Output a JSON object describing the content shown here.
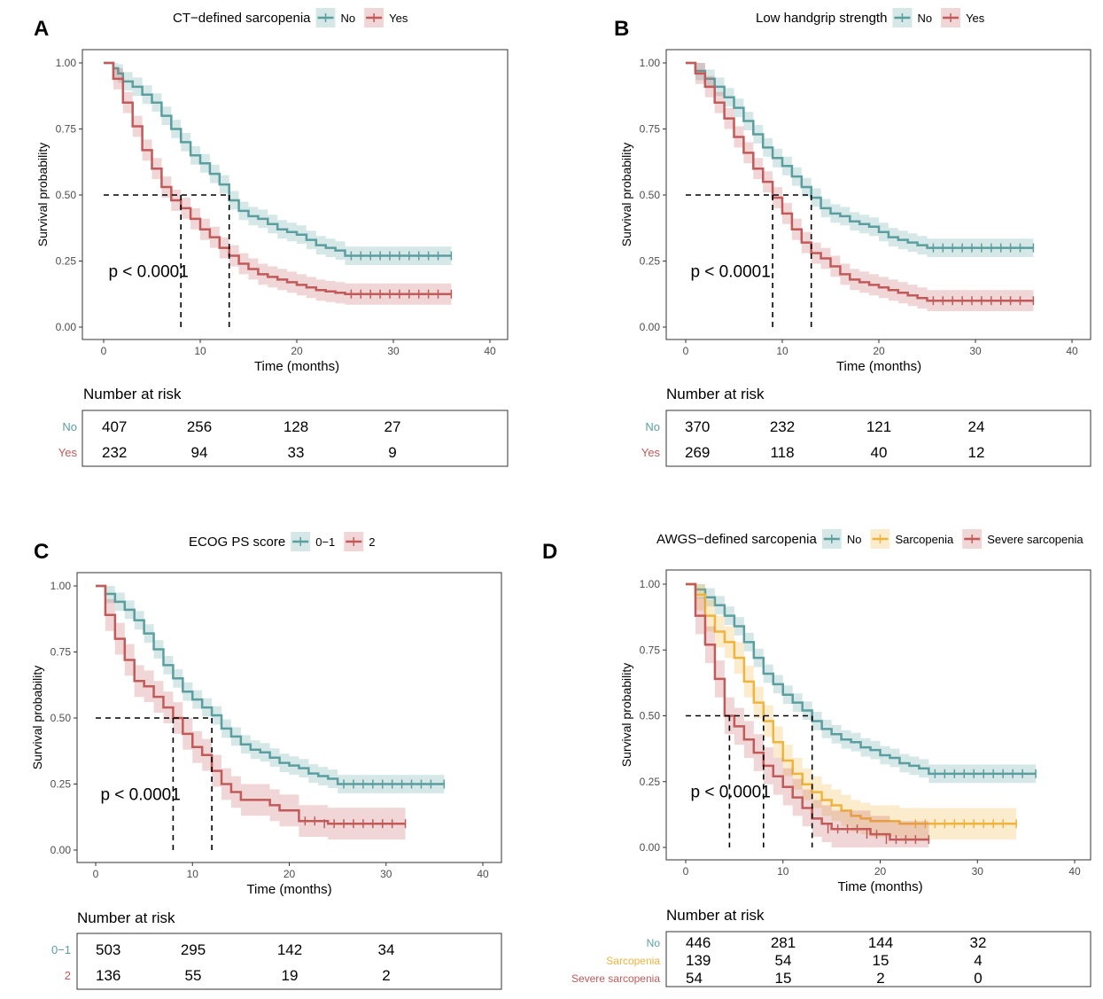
{
  "colors": {
    "teal": "#5b9ea0",
    "red": "#c25a5a",
    "orange": "#f0b43c",
    "axis": "#333333",
    "tick_text": "#4d4d4d"
  },
  "common": {
    "ylabel": "Survival probability",
    "xlabel": "Time (months)",
    "risk_title": "Number at risk",
    "xticks": [
      0,
      10,
      20,
      30,
      40
    ],
    "yticks": [
      "0.00",
      "0.25",
      "0.50",
      "0.75",
      "1.00"
    ]
  },
  "chart_data": [
    {
      "type": "line",
      "panel_label": "A",
      "title": "CT−defined sarcopenia",
      "xlabel": "Time (months)",
      "ylabel": "Survival probability",
      "xlim": [
        0,
        40
      ],
      "ylim": [
        0,
        1
      ],
      "pvalue": "p < 0.0001",
      "median_lines": [
        8,
        13
      ],
      "legend": [
        "No",
        "Yes"
      ],
      "series": [
        {
          "name": "No",
          "color": "#5b9ea0",
          "band": 0.035,
          "x": [
            0,
            1,
            1.5,
            2,
            3,
            4,
            5,
            6,
            7,
            8,
            9,
            10,
            11,
            12,
            13,
            14,
            15,
            16,
            17,
            18,
            19,
            20,
            21,
            22,
            23,
            24,
            25,
            26,
            27,
            28,
            29,
            30,
            31,
            32,
            33,
            34,
            35,
            36
          ],
          "y": [
            1,
            0.98,
            0.96,
            0.93,
            0.91,
            0.88,
            0.85,
            0.8,
            0.75,
            0.7,
            0.65,
            0.62,
            0.58,
            0.54,
            0.48,
            0.44,
            0.42,
            0.41,
            0.39,
            0.37,
            0.36,
            0.35,
            0.33,
            0.31,
            0.3,
            0.29,
            0.27,
            0.27,
            0.27,
            0.27,
            0.27,
            0.27,
            0.27,
            0.27,
            0.27,
            0.27,
            0.27,
            0.27
          ]
        },
        {
          "name": "Yes",
          "color": "#c25a5a",
          "band": 0.04,
          "x": [
            0,
            1,
            2,
            3,
            4,
            5,
            6,
            7,
            8,
            9,
            10,
            11,
            12,
            13,
            14,
            15,
            16,
            17,
            18,
            19,
            20,
            21,
            22,
            23,
            24,
            25,
            26,
            27,
            28,
            29,
            30,
            31,
            32,
            33,
            34,
            35,
            36
          ],
          "y": [
            1,
            0.94,
            0.85,
            0.76,
            0.67,
            0.6,
            0.53,
            0.48,
            0.45,
            0.41,
            0.37,
            0.34,
            0.3,
            0.27,
            0.24,
            0.22,
            0.2,
            0.19,
            0.18,
            0.17,
            0.16,
            0.15,
            0.14,
            0.135,
            0.13,
            0.125,
            0.125,
            0.125,
            0.125,
            0.125,
            0.125,
            0.125,
            0.125,
            0.125,
            0.125,
            0.125,
            0.125
          ]
        }
      ],
      "risk_table": {
        "labels": [
          "No",
          "Yes"
        ],
        "rows": [
          [
            407,
            256,
            128,
            27
          ],
          [
            232,
            94,
            33,
            9
          ]
        ]
      }
    },
    {
      "type": "line",
      "panel_label": "B",
      "title": "Low handgrip strength",
      "xlabel": "Time (months)",
      "ylabel": "Survival probability",
      "xlim": [
        0,
        40
      ],
      "ylim": [
        0,
        1
      ],
      "pvalue": "p < 0.0001",
      "median_lines": [
        9,
        13
      ],
      "legend": [
        "No",
        "Yes"
      ],
      "series": [
        {
          "name": "No",
          "color": "#5b9ea0",
          "band": 0.035,
          "x": [
            0,
            1,
            2,
            3,
            4,
            5,
            6,
            7,
            8,
            9,
            10,
            11,
            12,
            13,
            14,
            15,
            16,
            17,
            18,
            19,
            20,
            21,
            22,
            23,
            24,
            25,
            26,
            27,
            28,
            29,
            30,
            31,
            32,
            33,
            34,
            35,
            36
          ],
          "y": [
            1,
            0.97,
            0.94,
            0.91,
            0.87,
            0.83,
            0.78,
            0.73,
            0.68,
            0.64,
            0.61,
            0.57,
            0.53,
            0.49,
            0.45,
            0.43,
            0.42,
            0.4,
            0.39,
            0.38,
            0.36,
            0.34,
            0.33,
            0.32,
            0.31,
            0.3,
            0.3,
            0.3,
            0.3,
            0.3,
            0.3,
            0.3,
            0.3,
            0.3,
            0.3,
            0.3,
            0.3
          ]
        },
        {
          "name": "Yes",
          "color": "#c25a5a",
          "band": 0.04,
          "x": [
            0,
            1,
            2,
            3,
            4,
            5,
            6,
            7,
            8,
            9,
            10,
            11,
            12,
            13,
            14,
            15,
            16,
            17,
            18,
            19,
            20,
            21,
            22,
            23,
            24,
            25,
            26,
            27,
            28,
            29,
            30,
            31,
            32,
            33,
            34,
            35,
            36
          ],
          "y": [
            1,
            0.96,
            0.91,
            0.85,
            0.79,
            0.72,
            0.66,
            0.6,
            0.55,
            0.49,
            0.43,
            0.37,
            0.32,
            0.28,
            0.26,
            0.23,
            0.2,
            0.18,
            0.17,
            0.16,
            0.15,
            0.14,
            0.13,
            0.12,
            0.11,
            0.1,
            0.1,
            0.1,
            0.1,
            0.1,
            0.1,
            0.1,
            0.1,
            0.1,
            0.1,
            0.1,
            0.1
          ]
        }
      ],
      "risk_table": {
        "labels": [
          "No",
          "Yes"
        ],
        "rows": [
          [
            370,
            232,
            121,
            24
          ],
          [
            269,
            118,
            40,
            12
          ]
        ]
      }
    },
    {
      "type": "line",
      "panel_label": "C",
      "title": "ECOG PS score",
      "xlabel": "Time (months)",
      "ylabel": "Survival probability",
      "xlim": [
        0,
        40
      ],
      "ylim": [
        0,
        1
      ],
      "pvalue": "p < 0.0001",
      "median_lines": [
        8,
        12
      ],
      "legend": [
        "0−1",
        "2"
      ],
      "series": [
        {
          "name": "0−1",
          "color": "#5b9ea0",
          "band": 0.035,
          "x": [
            0,
            1,
            2,
            3,
            4,
            5,
            6,
            7,
            8,
            9,
            10,
            11,
            12,
            13,
            14,
            15,
            16,
            17,
            18,
            19,
            20,
            21,
            22,
            23,
            24,
            25,
            26,
            27,
            28,
            29,
            30,
            31,
            32,
            33,
            34,
            35,
            36
          ],
          "y": [
            1,
            0.97,
            0.94,
            0.91,
            0.87,
            0.82,
            0.76,
            0.7,
            0.65,
            0.6,
            0.57,
            0.54,
            0.51,
            0.46,
            0.43,
            0.4,
            0.38,
            0.37,
            0.35,
            0.33,
            0.32,
            0.31,
            0.29,
            0.28,
            0.27,
            0.25,
            0.25,
            0.25,
            0.25,
            0.25,
            0.25,
            0.25,
            0.25,
            0.25,
            0.25,
            0.25,
            0.25
          ]
        },
        {
          "name": "2",
          "color": "#c25a5a",
          "band": 0.06,
          "x": [
            0,
            1,
            2,
            3,
            4,
            5,
            6,
            7,
            8,
            9,
            10,
            11,
            12,
            13,
            14,
            15,
            16,
            17,
            18,
            19,
            20,
            21,
            22,
            23,
            24,
            25,
            26,
            27,
            28,
            29,
            30,
            31,
            32
          ],
          "y": [
            1,
            0.89,
            0.8,
            0.72,
            0.64,
            0.62,
            0.58,
            0.54,
            0.5,
            0.44,
            0.39,
            0.36,
            0.3,
            0.25,
            0.22,
            0.19,
            0.19,
            0.19,
            0.17,
            0.15,
            0.15,
            0.11,
            0.11,
            0.11,
            0.1,
            0.1,
            0.1,
            0.1,
            0.1,
            0.1,
            0.1,
            0.1,
            0.1
          ]
        }
      ],
      "risk_table": {
        "labels": [
          "0−1",
          "2"
        ],
        "rows": [
          [
            503,
            295,
            142,
            34
          ],
          [
            136,
            55,
            19,
            2
          ]
        ]
      }
    },
    {
      "type": "line",
      "panel_label": "D",
      "title": "AWGS−defined sarcopenia",
      "xlabel": "Time (months)",
      "ylabel": "Survival probability",
      "xlim": [
        0,
        40
      ],
      "ylim": [
        0,
        1
      ],
      "pvalue": "p < 0.0001",
      "median_lines": [
        4.5,
        8,
        13
      ],
      "legend": [
        "No",
        "Sarcopenia",
        "Severe sarcopenia"
      ],
      "series": [
        {
          "name": "No",
          "color": "#5b9ea0",
          "band": 0.035,
          "x": [
            0,
            1,
            2,
            3,
            4,
            5,
            6,
            7,
            8,
            9,
            10,
            11,
            12,
            13,
            14,
            15,
            16,
            17,
            18,
            19,
            20,
            21,
            22,
            23,
            24,
            25,
            26,
            27,
            28,
            29,
            30,
            31,
            32,
            33,
            34,
            35,
            36
          ],
          "y": [
            1,
            0.98,
            0.95,
            0.92,
            0.88,
            0.84,
            0.78,
            0.72,
            0.66,
            0.62,
            0.58,
            0.55,
            0.52,
            0.48,
            0.45,
            0.43,
            0.41,
            0.4,
            0.38,
            0.37,
            0.35,
            0.34,
            0.32,
            0.31,
            0.3,
            0.28,
            0.28,
            0.28,
            0.28,
            0.28,
            0.28,
            0.28,
            0.28,
            0.28,
            0.28,
            0.28,
            0.28
          ]
        },
        {
          "name": "Sarcopenia",
          "color": "#f0b43c",
          "band": 0.06,
          "x": [
            0,
            1,
            2,
            3,
            4,
            5,
            6,
            7,
            8,
            9,
            10,
            11,
            12,
            13,
            14,
            15,
            16,
            17,
            18,
            19,
            20,
            21,
            22,
            23,
            24,
            25,
            26,
            27,
            28,
            29,
            30,
            31,
            32,
            33,
            34
          ],
          "y": [
            1,
            0.96,
            0.88,
            0.82,
            0.78,
            0.72,
            0.63,
            0.55,
            0.48,
            0.4,
            0.33,
            0.28,
            0.24,
            0.21,
            0.18,
            0.16,
            0.14,
            0.12,
            0.11,
            0.1,
            0.1,
            0.1,
            0.09,
            0.09,
            0.09,
            0.09,
            0.09,
            0.09,
            0.09,
            0.09,
            0.09,
            0.09,
            0.09,
            0.09,
            0.09
          ]
        },
        {
          "name": "Severe sarcopenia",
          "color": "#c25a5a",
          "band": 0.07,
          "x": [
            0,
            1,
            2,
            3,
            4,
            5,
            6,
            7,
            8,
            9,
            10,
            11,
            12,
            13,
            14,
            15,
            16,
            17,
            18,
            19,
            20,
            21,
            22,
            23,
            24,
            25
          ],
          "y": [
            1,
            0.88,
            0.77,
            0.64,
            0.5,
            0.46,
            0.41,
            0.36,
            0.31,
            0.27,
            0.23,
            0.19,
            0.15,
            0.11,
            0.09,
            0.07,
            0.07,
            0.07,
            0.07,
            0.05,
            0.05,
            0.03,
            0.03,
            0.03,
            0.03,
            0.03
          ]
        }
      ],
      "risk_table": {
        "labels": [
          "No",
          "Sarcopenia",
          "Severe sarcopenia"
        ],
        "rows": [
          [
            446,
            281,
            144,
            32
          ],
          [
            139,
            54,
            15,
            4
          ],
          [
            54,
            15,
            2,
            0
          ]
        ]
      }
    }
  ]
}
